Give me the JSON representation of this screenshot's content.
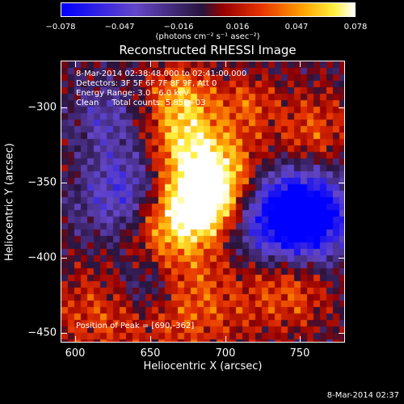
{
  "colorbar": {
    "ticks": [
      "−0.078",
      "−0.047",
      "−0.016",
      "0.016",
      "0.047",
      "0.078"
    ],
    "units": "(photons cm⁻² s⁻¹ asec⁻²)",
    "range": [
      -0.078,
      0.078
    ],
    "colormap": "blue-purple-red-yellow-white"
  },
  "plot": {
    "title": "Reconstructed RHESSI Image",
    "info_lines": [
      "8-Mar-2014 02:38:48.000 to 02:41:00.000",
      "Detectors: 3F 5F 6F 7F 8F 9F, Att 0",
      "Energy Range: 3.0 - 6.0 keV",
      "Clean     Total counts: 5.85E+03"
    ],
    "peak_label": "Position of Peak = [690,-362]",
    "xlabel": "Heliocentric X (arcsec)",
    "ylabel": "Heliocentric Y (arcsec)",
    "xticks": [
      "600",
      "650",
      "700",
      "750"
    ],
    "yticks": [
      "−300",
      "−350",
      "−400",
      "−450"
    ]
  },
  "chart_data": {
    "type": "heatmap",
    "title": "Reconstructed RHESSI Image",
    "xlabel": "Heliocentric X (arcsec)",
    "ylabel": "Heliocentric Y (arcsec)",
    "xlim": [
      590,
      780
    ],
    "ylim": [
      -462,
      -275
    ],
    "xtick_values": [
      600,
      650,
      700,
      750
    ],
    "ytick_values": [
      -300,
      -350,
      -400,
      -450
    ],
    "value_range": [
      -0.078,
      0.078
    ],
    "peak_position": [
      690,
      -362
    ]
  },
  "footer": {
    "timestamp": "8-Mar-2014 02:37"
  }
}
